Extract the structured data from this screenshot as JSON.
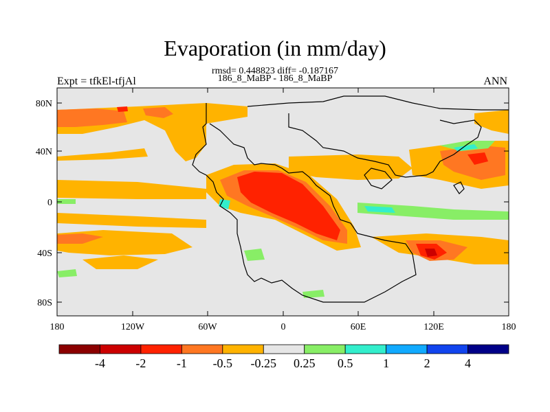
{
  "header": {
    "title": "Evaporation (in mm/day)",
    "stats": "rmsd= 0.448823 diff= -0.187167",
    "subtitle": "186_8_MaBP - 186_8_MaBP",
    "left_label": "Expt = tfkEl-tfjAl",
    "right_label": "ANN"
  },
  "map": {
    "lat_ticks": [
      "80N",
      "40N",
      "0",
      "40S",
      "80S"
    ],
    "lon_ticks": [
      "180",
      "120W",
      "60W",
      "0",
      "60E",
      "120E",
      "180"
    ],
    "background_color": "#e6e6e6",
    "coastline_color": "#000000"
  },
  "colorbar": {
    "labels": [
      "-4",
      "-2",
      "-1",
      "-0.5",
      "-0.25",
      "0.25",
      "0.5",
      "1",
      "2",
      "4"
    ],
    "colors": [
      "#8b0000",
      "#cc0000",
      "#ff2200",
      "#ff7722",
      "#ffb300",
      "#e6e6e6",
      "#88ee66",
      "#33eecc",
      "#11aaff",
      "#1144ee",
      "#000088"
    ]
  }
}
